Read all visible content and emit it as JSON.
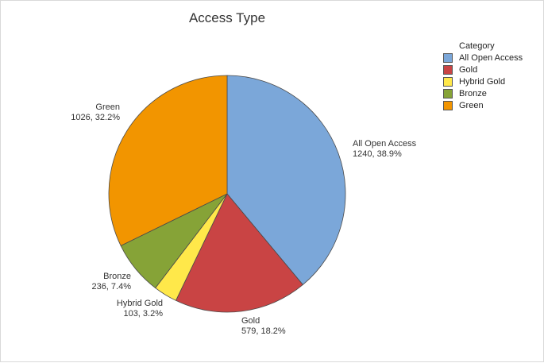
{
  "chart_data": {
    "type": "pie",
    "title": "Access Type",
    "legend_title": "Category",
    "legend_position": "right",
    "slices": [
      {
        "label": "All Open Access",
        "value": 1240,
        "percent": "38.9%",
        "color": "#7ba7d9"
      },
      {
        "label": "Gold",
        "value": 579,
        "percent": "18.2%",
        "color": "#c94444"
      },
      {
        "label": "Hybrid Gold",
        "value": 103,
        "percent": "3.2%",
        "color": "#ffe84a"
      },
      {
        "label": "Bronze",
        "value": 236,
        "percent": "7.4%",
        "color": "#86a337"
      },
      {
        "label": "Green",
        "value": 1026,
        "percent": "32.2%",
        "color": "#f29500"
      }
    ]
  }
}
